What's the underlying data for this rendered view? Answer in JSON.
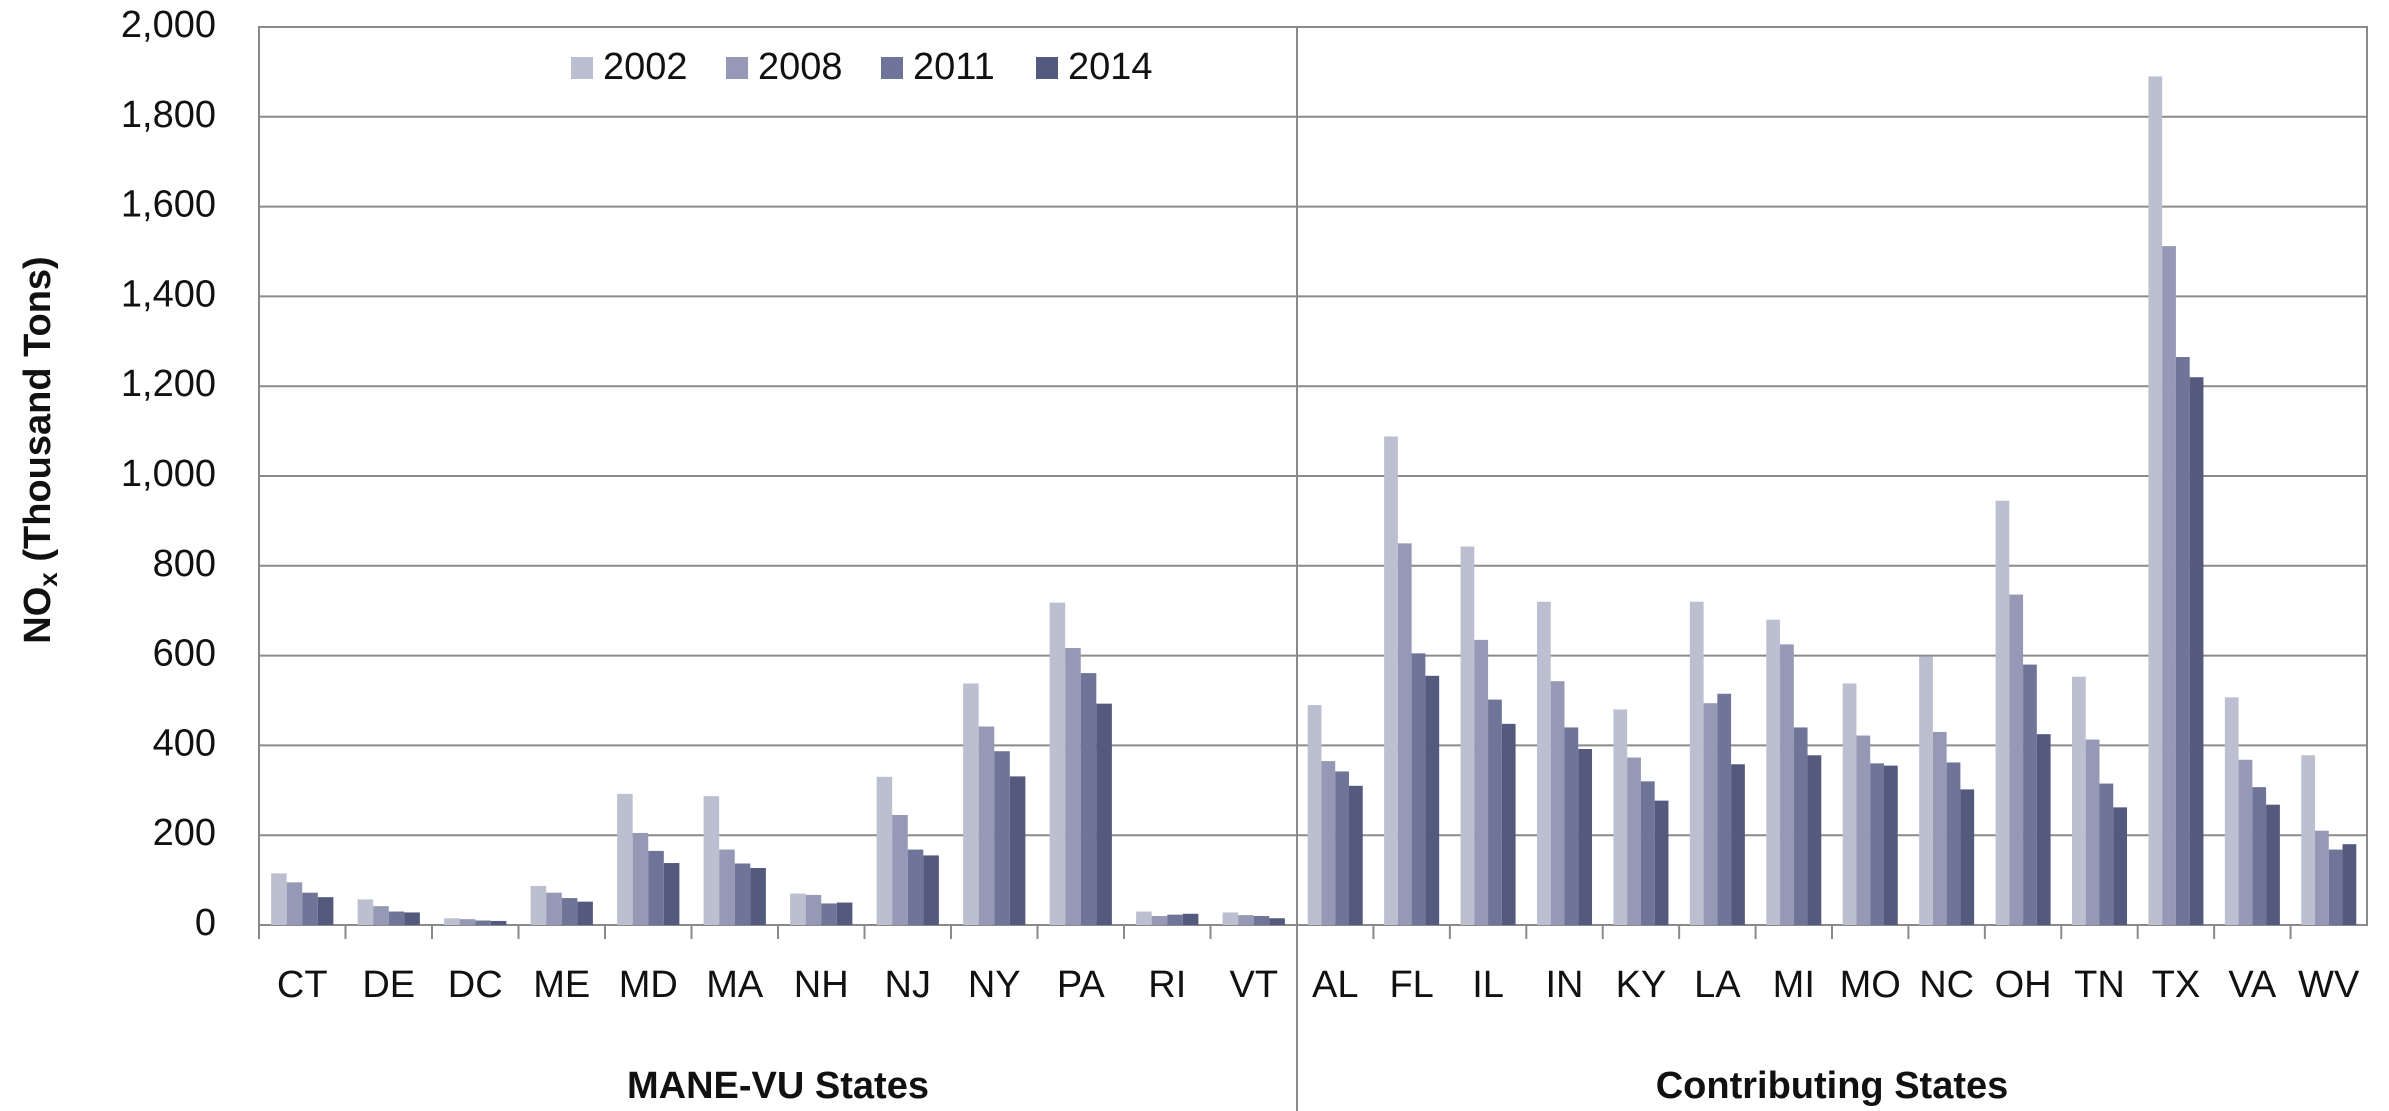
{
  "chart_data": {
    "type": "bar",
    "y_label": {
      "main": "NO",
      "sub": "x",
      "rest": " (Thousand Tons)"
    },
    "groups": [
      {
        "label": "MANE-VU States",
        "categories": [
          "CT",
          "DE",
          "DC",
          "ME",
          "MD",
          "MA",
          "NH",
          "NJ",
          "NY",
          "PA",
          "RI",
          "VT"
        ]
      },
      {
        "label": "Contributing States",
        "categories": [
          "AL",
          "FL",
          "IL",
          "IN",
          "KY",
          "LA",
          "MI",
          "MO",
          "NC",
          "OH",
          "TN",
          "TX",
          "VA",
          "WV"
        ]
      }
    ],
    "series": [
      {
        "name": "2002",
        "color": "#bcbfd0",
        "values": [
          115,
          57,
          15,
          87,
          292,
          287,
          70,
          330,
          538,
          718,
          30,
          28,
          490,
          1088,
          843,
          720,
          480,
          720,
          680,
          538,
          598,
          945,
          553,
          1890,
          507,
          378
        ]
      },
      {
        "name": "2008",
        "color": "#9599b6",
        "values": [
          95,
          42,
          13,
          72,
          205,
          168,
          67,
          245,
          442,
          617,
          20,
          22,
          365,
          850,
          635,
          543,
          373,
          494,
          625,
          422,
          430,
          736,
          413,
          1512,
          368,
          210
        ]
      },
      {
        "name": "2011",
        "color": "#6e7599",
        "values": [
          72,
          30,
          10,
          60,
          165,
          137,
          48,
          168,
          387,
          561,
          23,
          20,
          342,
          605,
          502,
          440,
          320,
          515,
          440,
          360,
          362,
          580,
          315,
          1265,
          307,
          168
        ]
      },
      {
        "name": "2014",
        "color": "#545a7e",
        "values": [
          62,
          28,
          9,
          52,
          138,
          127,
          50,
          155,
          331,
          493,
          25,
          15,
          310,
          555,
          448,
          392,
          277,
          358,
          378,
          355,
          302,
          425,
          262,
          1220,
          268,
          180
        ]
      }
    ],
    "ylim": [
      0,
      2000
    ],
    "yticks": [
      0,
      200,
      400,
      600,
      800,
      {
        "value": 1000,
        "label": "1,000"
      },
      {
        "value": 1200,
        "label": "1,200"
      },
      {
        "value": 1400,
        "label": "1,400"
      },
      {
        "value": 1600,
        "label": "1,600"
      },
      {
        "value": 1800,
        "label": "1,800"
      },
      {
        "value": 2000,
        "label": "2,000"
      }
    ],
    "grid": true,
    "legend": "top"
  }
}
